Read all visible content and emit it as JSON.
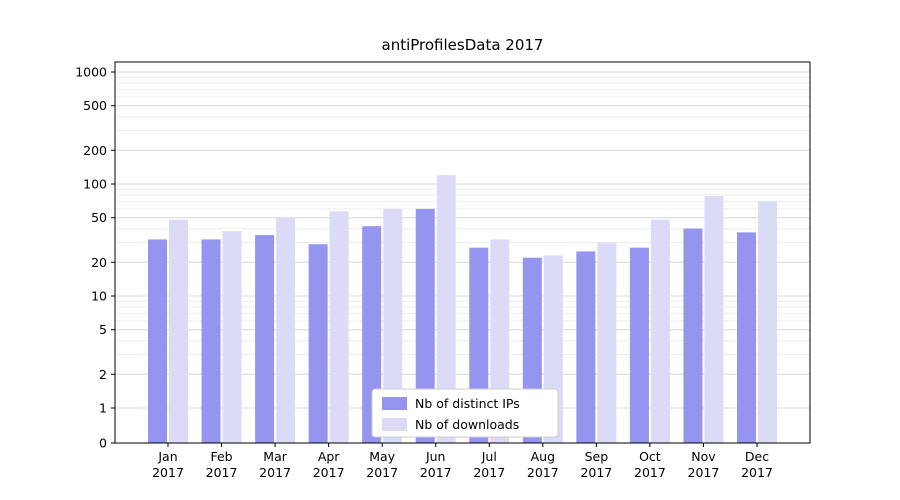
{
  "chart_data": {
    "type": "bar",
    "title": "antiProfilesData 2017",
    "categories": [
      "Jan 2017",
      "Feb 2017",
      "Mar 2017",
      "Apr 2017",
      "May 2017",
      "Jun 2017",
      "Jul 2017",
      "Aug 2017",
      "Sep 2017",
      "Oct 2017",
      "Nov 2017",
      "Dec 2017"
    ],
    "series": [
      {
        "name": "Nb of distinct IPs",
        "color": "#9595f0",
        "values": [
          32,
          32,
          35,
          29,
          42,
          60,
          27,
          22,
          25,
          27,
          40,
          37
        ]
      },
      {
        "name": "Nb of downloads",
        "color": "#dbdbf8",
        "values": [
          48,
          38,
          50,
          57,
          60,
          120,
          32,
          23,
          30,
          48,
          78,
          70
        ]
      }
    ],
    "yticks": [
      0,
      1,
      2,
      5,
      10,
      20,
      50,
      100,
      200,
      500,
      1000
    ],
    "ylim": [
      0,
      1000
    ],
    "yscale": "symlog",
    "xlabel": "",
    "ylabel": "",
    "grid": true,
    "legend_position": "lower center",
    "colors": {
      "grid_major": "#dcdcdc",
      "grid_minor": "#ededed",
      "axis": "#000000",
      "legend_border": "#cccccc"
    }
  }
}
